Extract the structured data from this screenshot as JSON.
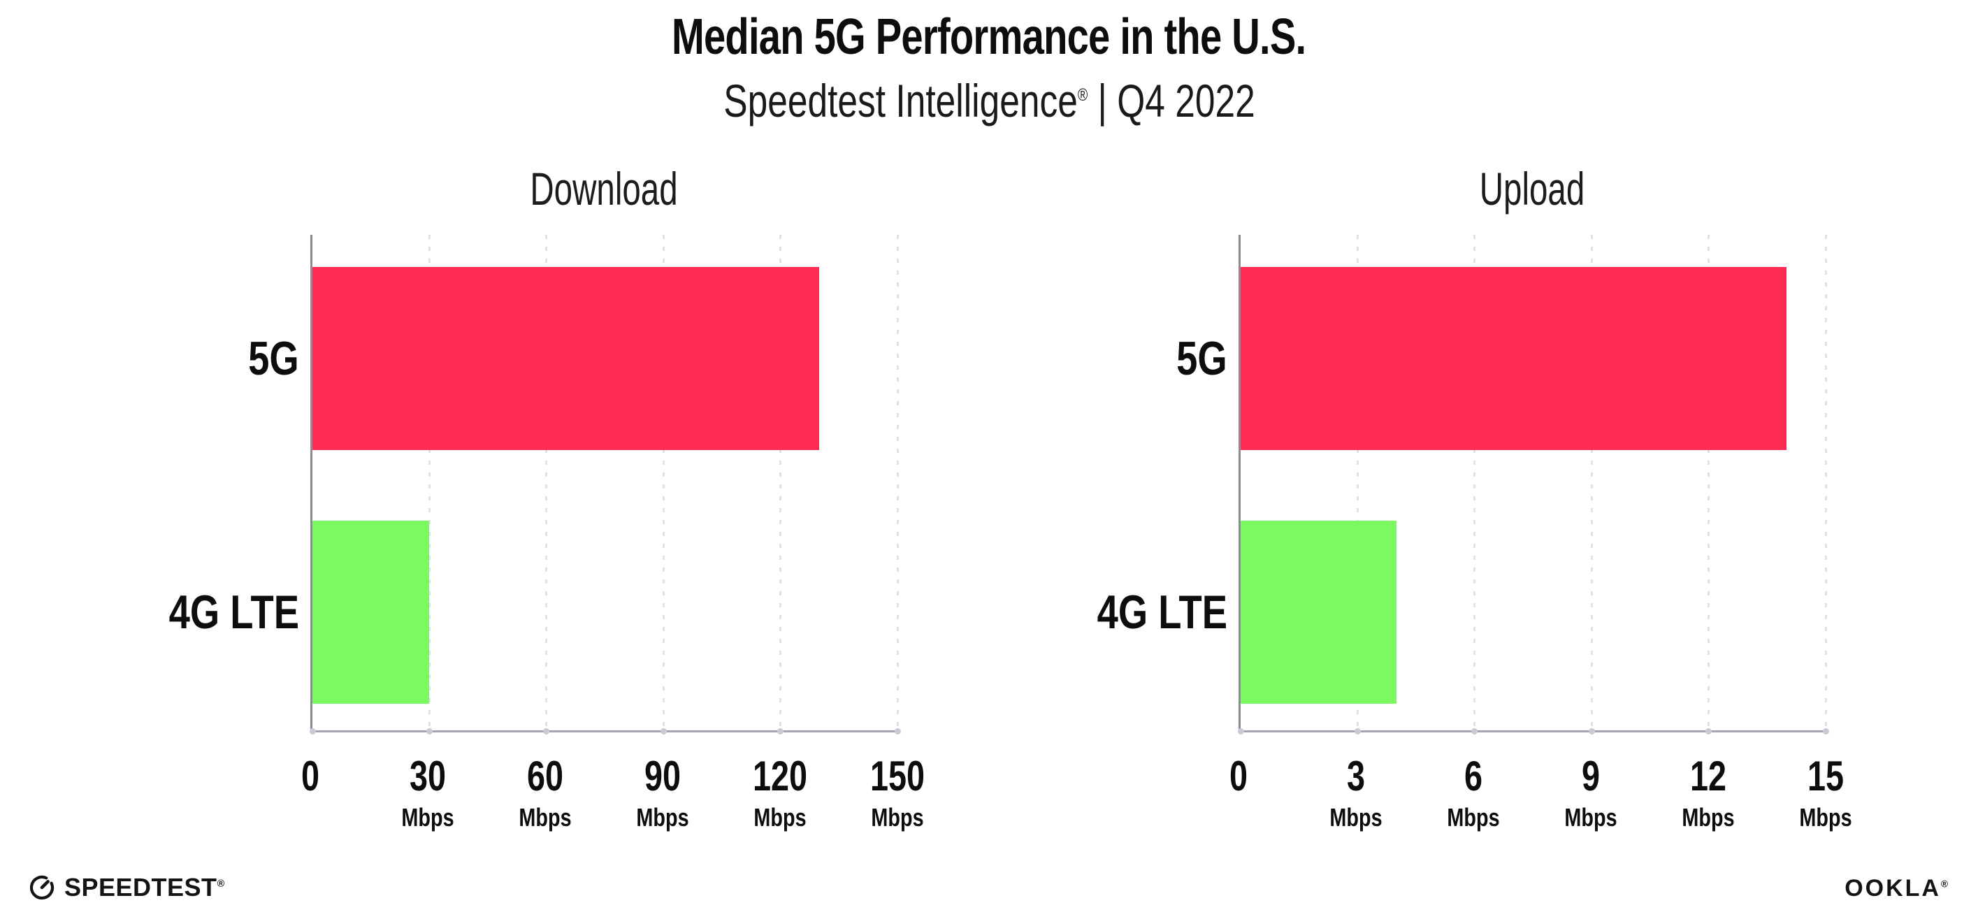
{
  "header": {
    "title": "Median 5G Performance in the U.S.",
    "subtitle_brand": "Speedtest Intelligence",
    "subtitle_reg": "®",
    "subtitle_sep": " | ",
    "subtitle_period": "Q4 2022"
  },
  "colors": {
    "bar_5g": "#FF2D55",
    "bar_4g_lte": "#7CF861",
    "gridline": "#E1E1EA",
    "axis_left": "#8B8B93",
    "axis_bottom": "#A5A5AD",
    "text": "#111111"
  },
  "chart_data": [
    {
      "type": "bar",
      "orientation": "horizontal",
      "title": "Download",
      "categories": [
        "5G",
        "4G LTE"
      ],
      "values": [
        130,
        30
      ],
      "unit": "Mbps",
      "xlabel": "",
      "ylabel": "",
      "xlim": [
        0,
        150
      ],
      "xticks": [
        0,
        30,
        60,
        90,
        120,
        150
      ],
      "bar_colors": [
        "#FF2D55",
        "#7CF861"
      ],
      "grid": "vertical dotted gridlines at each tick",
      "legend_position": "none"
    },
    {
      "type": "bar",
      "orientation": "horizontal",
      "title": "Upload",
      "categories": [
        "5G",
        "4G LTE"
      ],
      "values": [
        14,
        4
      ],
      "unit": "Mbps",
      "xlabel": "",
      "ylabel": "",
      "xlim": [
        0,
        15
      ],
      "xticks": [
        0,
        3,
        6,
        9,
        12,
        15
      ],
      "bar_colors": [
        "#FF2D55",
        "#7CF861"
      ],
      "grid": "vertical dotted gridlines at each tick",
      "legend_position": "none"
    }
  ],
  "footer": {
    "speedtest_label": "SPEEDTEST",
    "speedtest_reg": "®",
    "ookla_label": "OOKLA",
    "ookla_reg": "®"
  }
}
